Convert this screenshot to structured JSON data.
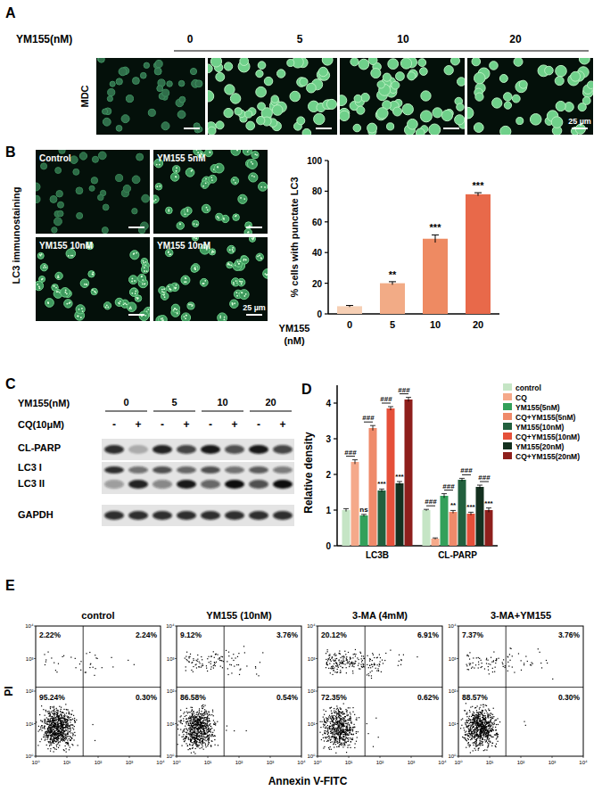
{
  "chart_data": [
    {
      "type": "bar",
      "categories": [
        "0",
        "5",
        "10",
        "20"
      ],
      "values": [
        5,
        20,
        49,
        78
      ],
      "errors": [
        0.5,
        1,
        2.5,
        1
      ],
      "colors": [
        "#f6cfb4",
        "#f2ab86",
        "#ee8a62",
        "#e8694a"
      ],
      "x_label": "YM155 (nM)",
      "y_label": "% cells with punctate LC3",
      "ylim": [
        0,
        100
      ],
      "yticks": [
        0,
        20,
        40,
        60,
        80,
        100
      ],
      "annotations": [
        {
          "text": "**",
          "index": 1
        },
        {
          "text": "***",
          "index": 2
        },
        {
          "text": "***",
          "index": 3
        }
      ]
    },
    {
      "type": "bar",
      "categories": [
        "LC3B",
        "CL-PARP"
      ],
      "y_label": "Relative density",
      "ylim": [
        0,
        4.5
      ],
      "yticks": [
        0,
        1,
        2,
        3,
        4
      ],
      "legend": "right",
      "series": [
        {
          "name": "control",
          "color": "#c5e5c5",
          "values": [
            1.0,
            1.0
          ],
          "errors": [
            0.04,
            0.02
          ]
        },
        {
          "name": "CQ",
          "color": "#f5a98a",
          "values": [
            2.35,
            0.2
          ],
          "errors": [
            0.06,
            0.02
          ]
        },
        {
          "name": "YM155(5nM)",
          "color": "#33a05a",
          "values": [
            0.85,
            1.4
          ],
          "errors": [
            0.03,
            0.06
          ]
        },
        {
          "name": "CQ+YM155(5nM)",
          "color": "#ef8a6a",
          "values": [
            3.3,
            0.95
          ],
          "errors": [
            0.07,
            0.04
          ]
        },
        {
          "name": "YM155(10nM)",
          "color": "#22603e",
          "values": [
            1.55,
            1.85
          ],
          "errors": [
            0.04,
            0.04
          ]
        },
        {
          "name": "CQ+YM155(10nM)",
          "color": "#e5503a",
          "values": [
            3.85,
            0.9
          ],
          "errors": [
            0.05,
            0.04
          ]
        },
        {
          "name": "YM155(20nM)",
          "color": "#14301f",
          "values": [
            1.75,
            1.65
          ],
          "errors": [
            0.05,
            0.05
          ]
        },
        {
          "name": "CQ+YM155(20nM)",
          "color": "#8e1f1c",
          "values": [
            4.1,
            1.0
          ],
          "errors": [
            0.06,
            0.06
          ]
        }
      ],
      "annotations": [
        {
          "text": "###",
          "category": 0,
          "series": [
            0,
            1
          ]
        },
        {
          "text": "ns",
          "category": 0,
          "series": [
            2
          ]
        },
        {
          "text": "###",
          "category": 0,
          "series": [
            2,
            3
          ]
        },
        {
          "text": "***",
          "category": 0,
          "series": [
            4
          ]
        },
        {
          "text": "###",
          "category": 0,
          "series": [
            4,
            5
          ]
        },
        {
          "text": "***",
          "category": 0,
          "series": [
            6
          ]
        },
        {
          "text": "###",
          "category": 0,
          "series": [
            6,
            7
          ]
        },
        {
          "text": "###",
          "category": 1,
          "series": [
            0,
            1
          ]
        },
        {
          "text": "###",
          "category": 1,
          "series": [
            2,
            3
          ]
        },
        {
          "text": "**",
          "category": 1,
          "series": [
            3
          ]
        },
        {
          "text": "###",
          "category": 1,
          "series": [
            4,
            5
          ]
        },
        {
          "text": "***",
          "category": 1,
          "series": [
            5
          ]
        },
        {
          "text": "###",
          "category": 1,
          "series": [
            6,
            7
          ]
        },
        {
          "text": "***",
          "category": 1,
          "series": [
            7
          ]
        }
      ]
    }
  ],
  "figure": {
    "panel_A": {
      "letter": "A",
      "dose_label": "YM155(nM)",
      "doses": [
        "0",
        "5",
        "10",
        "20"
      ],
      "row_label": "MDC",
      "scale_bar": "25 µm"
    },
    "panel_B": {
      "letter": "B",
      "row_label": "LC3 immunostaining",
      "images": [
        "Control",
        "YM155 5nM",
        "YM155 10nM",
        "YM155 10nM"
      ],
      "scale_bar": "25 µm"
    },
    "panel_C": {
      "letter": "C",
      "dose_label": "YM155(nM)",
      "doses": [
        "0",
        "5",
        "10",
        "20"
      ],
      "cq_label": "CQ(10μM)",
      "cq": [
        "-",
        "+",
        "-",
        "+",
        "-",
        "+",
        "-",
        "+"
      ],
      "rows": [
        "CL-PARP",
        "LC3 I",
        "LC3 II",
        "GAPDH"
      ]
    },
    "panel_D": {
      "letter": "D"
    },
    "panel_E": {
      "letter": "E",
      "y_label": "PI",
      "x_label": "Annexin V-FITC",
      "ticks": [
        "10⁰",
        "10¹",
        "10²",
        "10³",
        "10⁴"
      ],
      "plots": [
        {
          "title": "control",
          "quadrants": [
            {
              "value": 2.22,
              "label": "2.22%"
            },
            {
              "value": 2.24,
              "label": "2.24%"
            },
            {
              "value": 95.24,
              "label": "95.24%"
            },
            {
              "value": 0.3,
              "label": "0.30%"
            }
          ]
        },
        {
          "title": "YM155 (10nM)",
          "quadrants": [
            {
              "value": 9.12,
              "label": "9.12%"
            },
            {
              "value": 3.76,
              "label": "3.76%"
            },
            {
              "value": 86.58,
              "label": "86.58%"
            },
            {
              "value": 0.54,
              "label": "0.54%"
            }
          ]
        },
        {
          "title": "3-MA (4mM)",
          "quadrants": [
            {
              "value": 20.12,
              "label": "20.12%"
            },
            {
              "value": 6.91,
              "label": "6.91%"
            },
            {
              "value": 72.35,
              "label": "72.35%"
            },
            {
              "value": 0.62,
              "label": "0.62%"
            }
          ]
        },
        {
          "title": "3-MA+YM155",
          "quadrants": [
            {
              "value": 7.37,
              "label": "7.37%"
            },
            {
              "value": 3.76,
              "label": "3.76%"
            },
            {
              "value": 88.57,
              "label": "88.57%"
            },
            {
              "value": 0.3,
              "label": "0.30%"
            }
          ]
        }
      ]
    }
  }
}
